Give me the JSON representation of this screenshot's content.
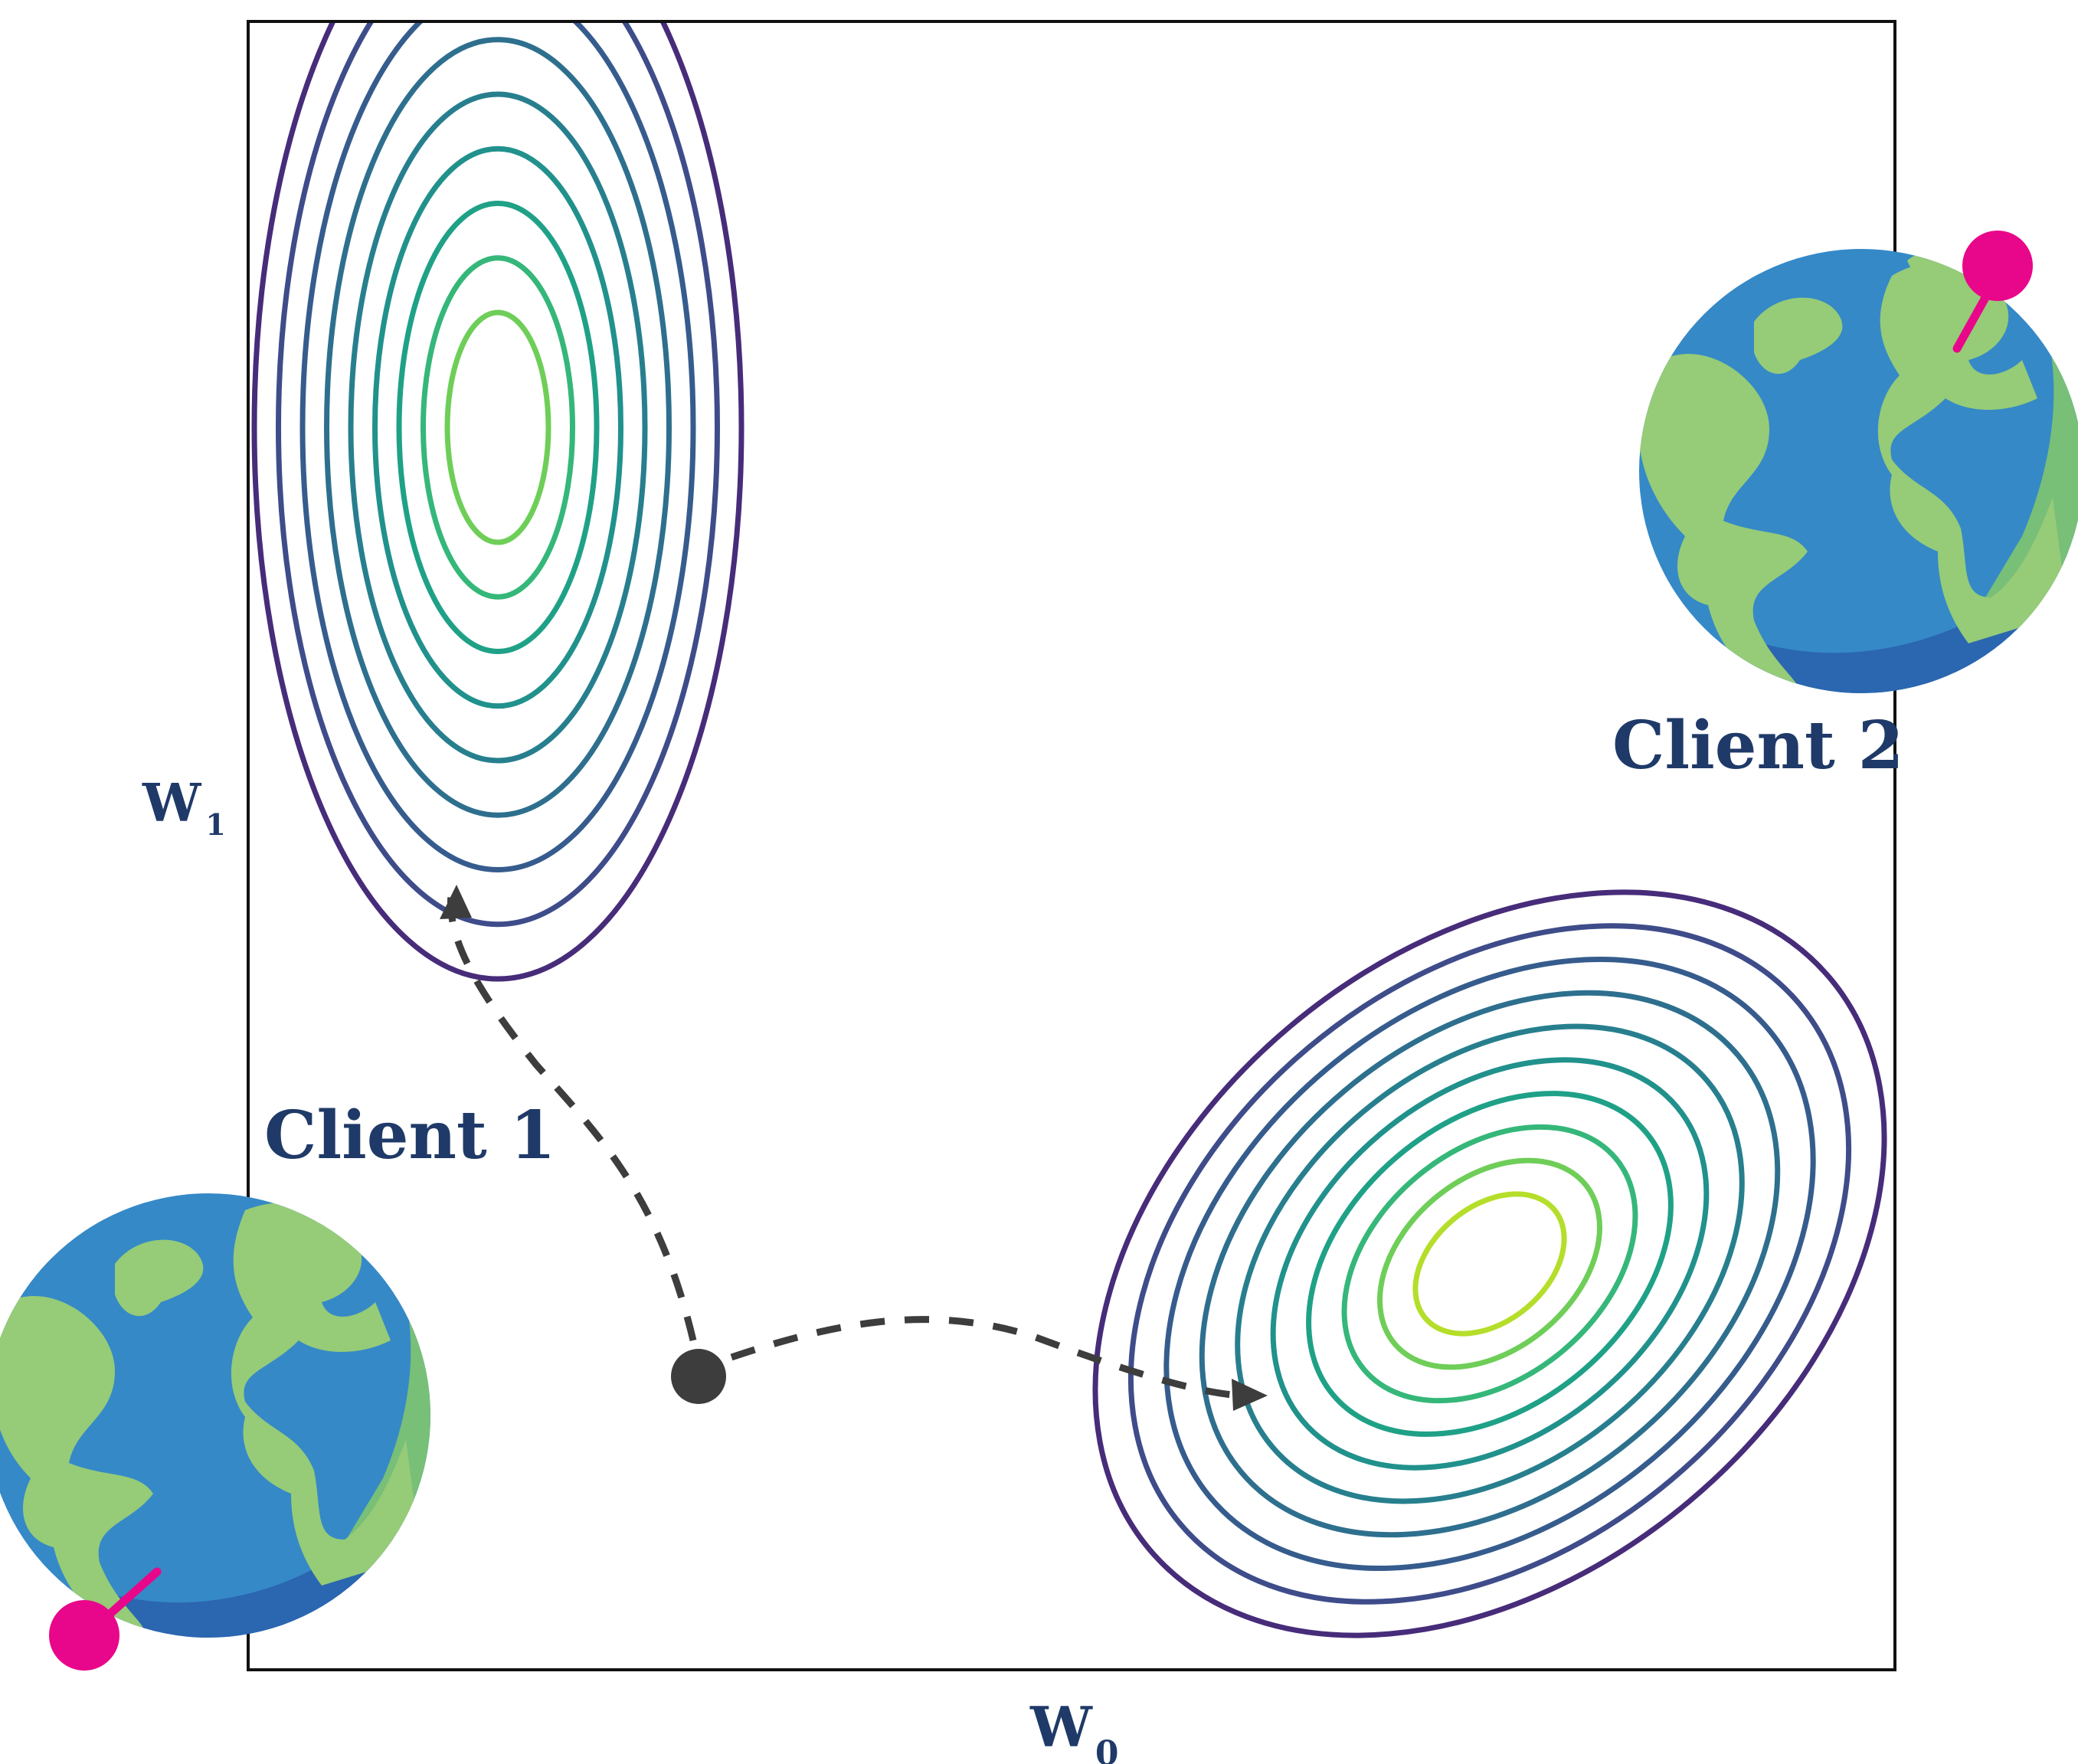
{
  "axes": {
    "x_label": "W",
    "x_subscript": "0",
    "y_label": "W",
    "y_subscript": "1"
  },
  "clients": [
    {
      "name": "Client 1"
    },
    {
      "name": "Client 2"
    }
  ],
  "colors": {
    "label": "#1f3a68",
    "frame": "#111111",
    "arrow": "#3d3d3d",
    "pin": "#e8068a",
    "ocean": "#3589c7",
    "ocean_shade": "#2b66b0",
    "land": "#96cb78",
    "land_shade": "#78bf78",
    "contour_levels": [
      "#472c7a",
      "#3e4c8a",
      "#365c8d",
      "#2e6f8e",
      "#277f8e",
      "#21918c",
      "#1fa187",
      "#35b779",
      "#6ece58",
      "#b5de2b"
    ]
  },
  "icons": [
    "globe-icon",
    "location-pin-icon",
    "start-point-icon",
    "arrowhead-icon"
  ]
}
